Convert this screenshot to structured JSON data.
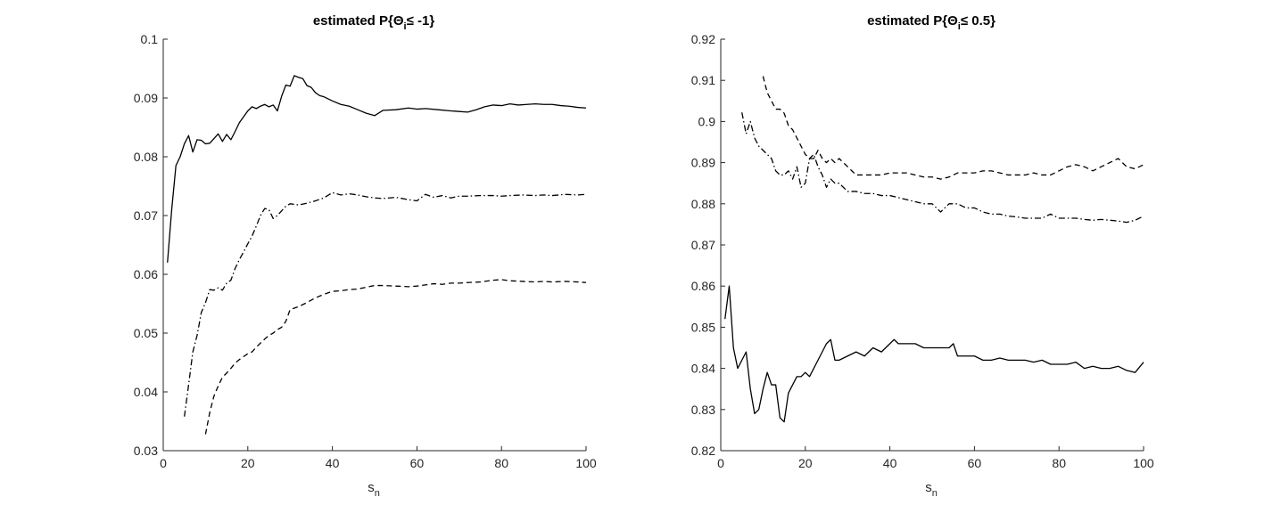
{
  "chart_data": [
    {
      "type": "line",
      "title_parts": {
        "main": "estimated P{Θ",
        "sub": "i",
        "tail": "≤ -1}"
      },
      "xlabel": {
        "main": "s",
        "sub": "n"
      },
      "ylabel": "",
      "xlim": [
        0,
        100
      ],
      "ylim": [
        0.03,
        0.1
      ],
      "xticks": [
        "0",
        "20",
        "40",
        "60",
        "80",
        "100"
      ],
      "yticks": [
        "0.03",
        "0.04",
        "0.05",
        "0.06",
        "0.07",
        "0.08",
        "0.09",
        "0.1"
      ],
      "grid": false,
      "series": [
        {
          "style": "solid",
          "color": "#000000",
          "x": [
            1,
            2,
            3,
            4,
            5,
            6,
            7,
            8,
            9,
            10,
            11,
            12,
            13,
            14,
            15,
            16,
            17,
            18,
            19,
            20,
            21,
            22,
            23,
            24,
            25,
            26,
            27,
            28,
            29,
            30,
            31,
            32,
            33,
            34,
            35,
            36,
            37,
            38,
            40,
            42,
            44,
            46,
            48,
            50,
            52,
            55,
            58,
            60,
            62,
            65,
            68,
            70,
            72,
            74,
            76,
            78,
            80,
            82,
            84,
            86,
            88,
            90,
            92,
            94,
            96,
            98,
            100
          ],
          "y": [
            0.062,
            0.071,
            0.0785,
            0.08,
            0.0822,
            0.0836,
            0.0808,
            0.0829,
            0.0828,
            0.0822,
            0.0823,
            0.0831,
            0.0839,
            0.0826,
            0.0838,
            0.0829,
            0.0843,
            0.0858,
            0.0868,
            0.0878,
            0.0885,
            0.0882,
            0.0886,
            0.0889,
            0.0885,
            0.0888,
            0.0878,
            0.0903,
            0.0922,
            0.092,
            0.0938,
            0.0935,
            0.0933,
            0.0921,
            0.0918,
            0.0909,
            0.0904,
            0.0902,
            0.0895,
            0.0889,
            0.0886,
            0.088,
            0.0874,
            0.087,
            0.0879,
            0.088,
            0.0883,
            0.0881,
            0.0882,
            0.088,
            0.0878,
            0.0877,
            0.0876,
            0.088,
            0.0885,
            0.0888,
            0.0887,
            0.089,
            0.0888,
            0.0889,
            0.089,
            0.0889,
            0.0889,
            0.0887,
            0.0886,
            0.0884,
            0.0883
          ]
        },
        {
          "style": "dashdot",
          "color": "#000000",
          "x": [
            5,
            6,
            7,
            8,
            9,
            10,
            11,
            12,
            13,
            14,
            15,
            16,
            17,
            18,
            19,
            20,
            21,
            22,
            23,
            24,
            25,
            26,
            27,
            28,
            29,
            30,
            32,
            34,
            36,
            38,
            40,
            42,
            44,
            46,
            48,
            50,
            52,
            55,
            58,
            60,
            62,
            64,
            66,
            68,
            70,
            72,
            75,
            78,
            80,
            82,
            85,
            88,
            90,
            92,
            95,
            98,
            100
          ],
          "y": [
            0.0358,
            0.0412,
            0.0468,
            0.0496,
            0.0535,
            0.0552,
            0.0574,
            0.0573,
            0.0577,
            0.0573,
            0.0585,
            0.059,
            0.061,
            0.0625,
            0.0638,
            0.0652,
            0.0665,
            0.0682,
            0.07,
            0.0712,
            0.071,
            0.0695,
            0.07,
            0.0708,
            0.0716,
            0.072,
            0.0718,
            0.0721,
            0.0725,
            0.073,
            0.0739,
            0.0735,
            0.0737,
            0.0735,
            0.0732,
            0.073,
            0.0729,
            0.0731,
            0.0727,
            0.0725,
            0.0736,
            0.0731,
            0.0734,
            0.073,
            0.0733,
            0.0733,
            0.0734,
            0.0734,
            0.0733,
            0.0734,
            0.0735,
            0.0734,
            0.0735,
            0.0734,
            0.0736,
            0.0735,
            0.0736
          ]
        },
        {
          "style": "dashed",
          "color": "#000000",
          "x": [
            10,
            11,
            12,
            13,
            14,
            15,
            16,
            17,
            18,
            19,
            20,
            21,
            22,
            23,
            24,
            25,
            26,
            27,
            28,
            29,
            30,
            32,
            34,
            36,
            38,
            40,
            42,
            44,
            46,
            48,
            50,
            52,
            55,
            58,
            60,
            62,
            64,
            66,
            68,
            70,
            72,
            75,
            78,
            80,
            82,
            85,
            88,
            90,
            92,
            95,
            98,
            100
          ],
          "y": [
            0.0328,
            0.0365,
            0.0393,
            0.041,
            0.0425,
            0.0432,
            0.044,
            0.0449,
            0.0455,
            0.046,
            0.0465,
            0.0468,
            0.0476,
            0.0483,
            0.049,
            0.0496,
            0.05,
            0.0506,
            0.051,
            0.052,
            0.054,
            0.0545,
            0.0552,
            0.056,
            0.0566,
            0.0571,
            0.0572,
            0.0574,
            0.0575,
            0.0578,
            0.0581,
            0.0581,
            0.058,
            0.0579,
            0.058,
            0.0582,
            0.0584,
            0.0583,
            0.0585,
            0.0585,
            0.0586,
            0.0587,
            0.059,
            0.0591,
            0.0589,
            0.0588,
            0.0587,
            0.0588,
            0.0587,
            0.0588,
            0.0587,
            0.0586
          ]
        }
      ]
    },
    {
      "type": "line",
      "title_parts": {
        "main": "estimated P{Θ",
        "sub": "i",
        "tail": "≤ 0.5}"
      },
      "xlabel": {
        "main": "s",
        "sub": "n"
      },
      "ylabel": "",
      "xlim": [
        0,
        100
      ],
      "ylim": [
        0.82,
        0.92
      ],
      "xticks": [
        "0",
        "20",
        "40",
        "60",
        "80",
        "100"
      ],
      "yticks": [
        "0.82",
        "0.83",
        "0.84",
        "0.85",
        "0.86",
        "0.87",
        "0.88",
        "0.89",
        "0.9",
        "0.91",
        "0.92"
      ],
      "grid": false,
      "series": [
        {
          "style": "solid",
          "color": "#000000",
          "x": [
            1,
            2,
            3,
            4,
            5,
            6,
            7,
            8,
            9,
            10,
            11,
            12,
            13,
            14,
            15,
            16,
            17,
            18,
            19,
            20,
            21,
            22,
            23,
            24,
            25,
            26,
            27,
            28,
            30,
            32,
            34,
            36,
            38,
            40,
            41,
            42,
            44,
            46,
            48,
            50,
            52,
            54,
            55,
            56,
            58,
            60,
            62,
            64,
            66,
            68,
            70,
            72,
            74,
            76,
            78,
            80,
            82,
            84,
            86,
            88,
            90,
            92,
            94,
            96,
            98,
            100
          ],
          "y": [
            0.852,
            0.86,
            0.845,
            0.84,
            0.842,
            0.844,
            0.835,
            0.829,
            0.83,
            0.835,
            0.839,
            0.836,
            0.836,
            0.828,
            0.827,
            0.834,
            0.836,
            0.838,
            0.838,
            0.839,
            0.838,
            0.84,
            0.842,
            0.844,
            0.846,
            0.847,
            0.842,
            0.842,
            0.843,
            0.844,
            0.843,
            0.845,
            0.844,
            0.846,
            0.847,
            0.846,
            0.846,
            0.846,
            0.845,
            0.845,
            0.845,
            0.845,
            0.846,
            0.843,
            0.843,
            0.843,
            0.842,
            0.842,
            0.8425,
            0.842,
            0.842,
            0.842,
            0.8415,
            0.842,
            0.841,
            0.841,
            0.841,
            0.8415,
            0.84,
            0.8405,
            0.84,
            0.84,
            0.8405,
            0.8395,
            0.839,
            0.8415
          ]
        },
        {
          "style": "dashdot",
          "color": "#000000",
          "x": [
            5,
            6,
            7,
            8,
            9,
            10,
            11,
            12,
            13,
            14,
            15,
            16,
            17,
            18,
            19,
            20,
            21,
            22,
            23,
            24,
            25,
            26,
            27,
            28,
            30,
            32,
            34,
            36,
            38,
            40,
            42,
            44,
            46,
            48,
            50,
            52,
            54,
            56,
            58,
            60,
            62,
            64,
            66,
            68,
            70,
            72,
            74,
            76,
            78,
            80,
            82,
            84,
            86,
            88,
            90,
            92,
            94,
            96,
            98,
            100
          ],
          "y": [
            0.9022,
            0.897,
            0.9,
            0.896,
            0.894,
            0.893,
            0.892,
            0.891,
            0.888,
            0.887,
            0.887,
            0.888,
            0.886,
            0.889,
            0.884,
            0.885,
            0.891,
            0.892,
            0.889,
            0.887,
            0.884,
            0.886,
            0.885,
            0.885,
            0.883,
            0.883,
            0.8825,
            0.8825,
            0.882,
            0.882,
            0.8815,
            0.881,
            0.8805,
            0.88,
            0.88,
            0.878,
            0.88,
            0.88,
            0.879,
            0.879,
            0.878,
            0.8775,
            0.8775,
            0.877,
            0.8768,
            0.8765,
            0.8765,
            0.8765,
            0.8775,
            0.8765,
            0.8765,
            0.8765,
            0.8762,
            0.876,
            0.8762,
            0.876,
            0.8758,
            0.8755,
            0.876,
            0.877
          ]
        },
        {
          "style": "dashed",
          "color": "#000000",
          "x": [
            10,
            11,
            12,
            13,
            14,
            15,
            16,
            17,
            18,
            19,
            20,
            21,
            22,
            23,
            24,
            25,
            26,
            27,
            28,
            30,
            32,
            34,
            36,
            38,
            40,
            42,
            44,
            46,
            48,
            50,
            52,
            54,
            56,
            58,
            60,
            62,
            64,
            66,
            68,
            70,
            72,
            74,
            76,
            78,
            80,
            82,
            84,
            86,
            88,
            90,
            92,
            94,
            96,
            98,
            100
          ],
          "y": [
            0.911,
            0.907,
            0.905,
            0.903,
            0.903,
            0.902,
            0.899,
            0.898,
            0.896,
            0.894,
            0.892,
            0.891,
            0.891,
            0.893,
            0.891,
            0.89,
            0.891,
            0.89,
            0.891,
            0.889,
            0.887,
            0.887,
            0.887,
            0.887,
            0.8875,
            0.8875,
            0.8875,
            0.887,
            0.8865,
            0.8865,
            0.886,
            0.8865,
            0.8875,
            0.8875,
            0.8875,
            0.888,
            0.888,
            0.8875,
            0.887,
            0.887,
            0.887,
            0.8875,
            0.887,
            0.887,
            0.888,
            0.889,
            0.8895,
            0.889,
            0.888,
            0.889,
            0.89,
            0.891,
            0.889,
            0.8885,
            0.8895
          ]
        }
      ]
    }
  ]
}
